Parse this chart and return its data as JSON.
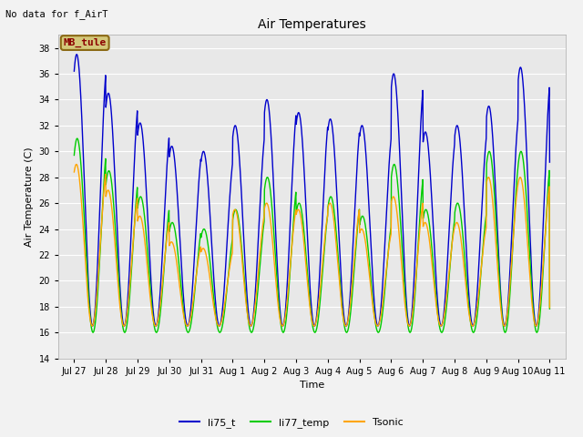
{
  "title": "Air Temperatures",
  "subtitle": "No data for f_AirT",
  "xlabel": "Time",
  "ylabel": "Air Temperature (C)",
  "ylim": [
    14,
    39
  ],
  "yticks": [
    14,
    16,
    18,
    20,
    22,
    24,
    26,
    28,
    30,
    32,
    34,
    36,
    38
  ],
  "bg_color": "#e8e8e8",
  "fig_color": "#f2f2f2",
  "legend_label": "MB_tule",
  "legend_box_color": "#d4c87a",
  "legend_text_color": "#8b0000",
  "series": [
    {
      "name": "li75_t",
      "color": "#0000cc"
    },
    {
      "name": "li77_temp",
      "color": "#00cc00"
    },
    {
      "name": "Tsonic",
      "color": "#ffa500"
    }
  ],
  "tick_labels": [
    "Jul 27",
    "Jul 28",
    "Jul 29",
    "Jul 30",
    "Jul 31",
    "Aug 1",
    "Aug 2",
    "Aug 3",
    "Aug 4",
    "Aug 5",
    "Aug 6",
    "Aug 7",
    "Aug 8",
    "Aug 9",
    "Aug 10",
    "Aug 11"
  ],
  "tick_positions": [
    0,
    1,
    2,
    3,
    4,
    5,
    6,
    7,
    8,
    9,
    10,
    11,
    12,
    13,
    14,
    15
  ]
}
